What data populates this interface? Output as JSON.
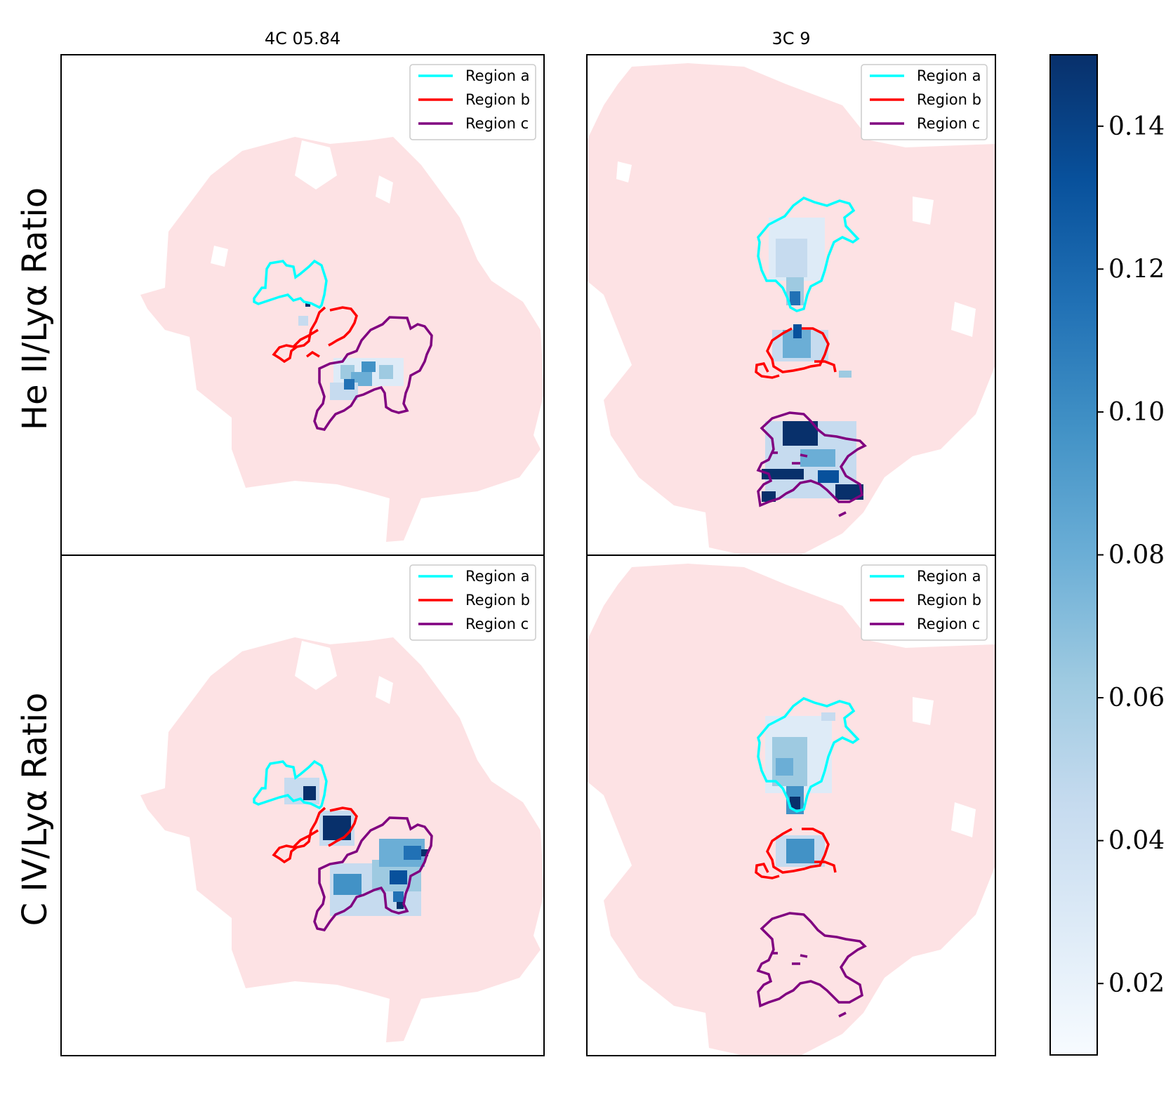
{
  "chart_data": {
    "type": "heatmap",
    "description_free": true,
    "columns": [
      "4C 05.84",
      "3C 9"
    ],
    "rows": [
      "He II/Lyα Ratio",
      "C IV/Lyα Ratio"
    ],
    "legend": [
      {
        "label": "Region a",
        "color": "#00ffff"
      },
      {
        "label": "Region b",
        "color": "#ff0000"
      },
      {
        "label": "Region c",
        "color": "#800080"
      }
    ],
    "colorbar": {
      "colormap": "Blues",
      "range": [
        0.01,
        0.15
      ],
      "ticks": [
        0.02,
        0.04,
        0.06,
        0.08,
        0.1,
        0.12,
        0.14
      ],
      "tick_labels": [
        "0.02",
        "0.04",
        "0.06",
        "0.08",
        "0.10",
        "0.12",
        "0.14"
      ]
    },
    "background_mask_color": "#fde2e4"
  },
  "colors": {
    "region_a": "#00ffff",
    "region_b": "#ff0000",
    "region_c": "#800080",
    "mask": "#fde2e4",
    "cmap_low": "#f7fbff",
    "cmap_high": "#08306b"
  }
}
